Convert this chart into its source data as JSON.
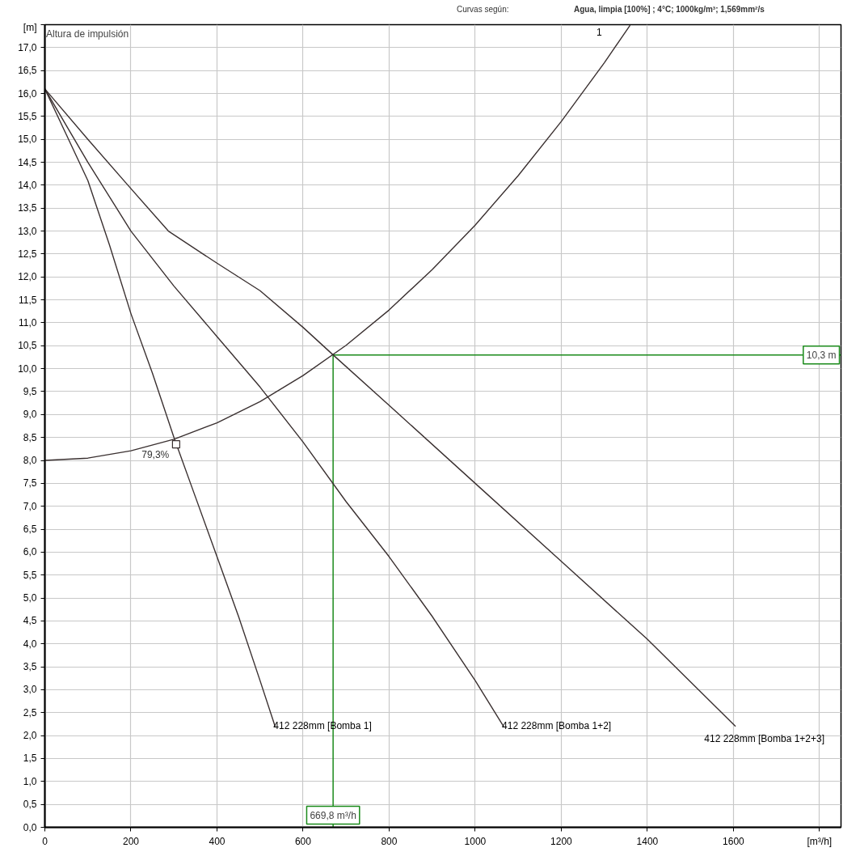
{
  "chart_data": {
    "type": "line",
    "title": "Curvas según:",
    "subtitle": "Agua, limpia [100%] ; 4°C; 1000kg/m³; 1,569mm²/s",
    "ylabel": "Altura de impulsión",
    "xlim": [
      0,
      1850
    ],
    "ylim": [
      0,
      17.5
    ],
    "xticks": [
      0,
      200,
      400,
      600,
      800,
      1000,
      1200,
      1400,
      1600,
      {
        "value": 1800,
        "label": "[m³/h]"
      }
    ],
    "yticks": [
      {
        "value": 0,
        "label": "0,0"
      },
      {
        "value": 0.5,
        "label": "0,5"
      },
      {
        "value": 1,
        "label": "1,0"
      },
      {
        "value": 1.5,
        "label": "1,5"
      },
      {
        "value": 2,
        "label": "2,0"
      },
      {
        "value": 2.5,
        "label": "2,5"
      },
      {
        "value": 3,
        "label": "3,0"
      },
      {
        "value": 3.5,
        "label": "3,5"
      },
      {
        "value": 4,
        "label": "4,0"
      },
      {
        "value": 4.5,
        "label": "4,5"
      },
      {
        "value": 5,
        "label": "5,0"
      },
      {
        "value": 5.5,
        "label": "5,5"
      },
      {
        "value": 6,
        "label": "6,0"
      },
      {
        "value": 6.5,
        "label": "6,5"
      },
      {
        "value": 7,
        "label": "7,0"
      },
      {
        "value": 7.5,
        "label": "7,5"
      },
      {
        "value": 8,
        "label": "8,0"
      },
      {
        "value": 8.5,
        "label": "8,5"
      },
      {
        "value": 9,
        "label": "9,0"
      },
      {
        "value": 9.5,
        "label": "9,5"
      },
      {
        "value": 10,
        "label": "10,0"
      },
      {
        "value": 10.5,
        "label": "10,5"
      },
      {
        "value": 11,
        "label": "11,0"
      },
      {
        "value": 11.5,
        "label": "11,5"
      },
      {
        "value": 12,
        "label": "12,0"
      },
      {
        "value": 12.5,
        "label": "12,5"
      },
      {
        "value": 13,
        "label": "13,0"
      },
      {
        "value": 13.5,
        "label": "13,5"
      },
      {
        "value": 14,
        "label": "14,0"
      },
      {
        "value": 14.5,
        "label": "14,5"
      },
      {
        "value": 15,
        "label": "15,0"
      },
      {
        "value": 15.5,
        "label": "15,5"
      },
      {
        "value": 16,
        "label": "16,0"
      },
      {
        "value": 16.5,
        "label": "16,5"
      },
      {
        "value": 17,
        "label": "17,0"
      },
      {
        "value": 17.5,
        "label": "[m]"
      }
    ],
    "grid": true,
    "series": [
      {
        "name": "412 228mm [Bomba 1]",
        "color": "#3a3030",
        "x": [
          0,
          50,
          100,
          150,
          200,
          250,
          300,
          350,
          400,
          450,
          500,
          535
        ],
        "values": [
          16.1,
          15.1,
          14.1,
          12.7,
          11.2,
          9.9,
          8.5,
          7.2,
          5.9,
          4.6,
          3.2,
          2.2
        ]
      },
      {
        "name": "412 228mm [Bomba 1+2]",
        "color": "#3a3030",
        "x": [
          0,
          100,
          200,
          300,
          400,
          500,
          600,
          700,
          800,
          900,
          1000,
          1066
        ],
        "values": [
          16.1,
          14.5,
          13.0,
          11.8,
          10.7,
          9.6,
          8.4,
          7.1,
          5.9,
          4.6,
          3.2,
          2.2
        ]
      },
      {
        "name": "412 228mm [Bomba 1+2+3]",
        "color": "#3a3030",
        "x": [
          0,
          100,
          193,
          287,
          400,
          500,
          600,
          669.8,
          800,
          1000,
          1200,
          1400,
          1605
        ],
        "values": [
          16.1,
          15.0,
          14.0,
          13.0,
          12.3,
          11.7,
          10.9,
          10.3,
          9.2,
          7.5,
          5.8,
          4.1,
          2.2
        ]
      },
      {
        "color": "#3a3030",
        "x": [
          0,
          100,
          200,
          300,
          400,
          500,
          600,
          700,
          800,
          900,
          1000,
          1100,
          1200,
          1300,
          1360
        ],
        "values": [
          8.0,
          8.05,
          8.21,
          8.46,
          8.82,
          9.28,
          9.85,
          10.51,
          11.28,
          12.16,
          13.13,
          14.21,
          15.39,
          16.67,
          17.49
        ]
      },
      {
        "type": "scatter",
        "marker": "square",
        "color": "#3a3030",
        "x": [
          305
        ],
        "values": [
          8.35
        ]
      }
    ],
    "ref_lines": [
      {
        "axis": "x",
        "value": 669.8,
        "label": "669,8 m³/h",
        "color": "#1a8a1a"
      },
      {
        "axis": "y",
        "value": 10.3,
        "label": "10,3 m",
        "color": "#1a8a1a"
      }
    ],
    "annotations": [
      "1",
      {
        "text": "79,3%",
        "x": 300,
        "y": 8.3
      }
    ]
  }
}
